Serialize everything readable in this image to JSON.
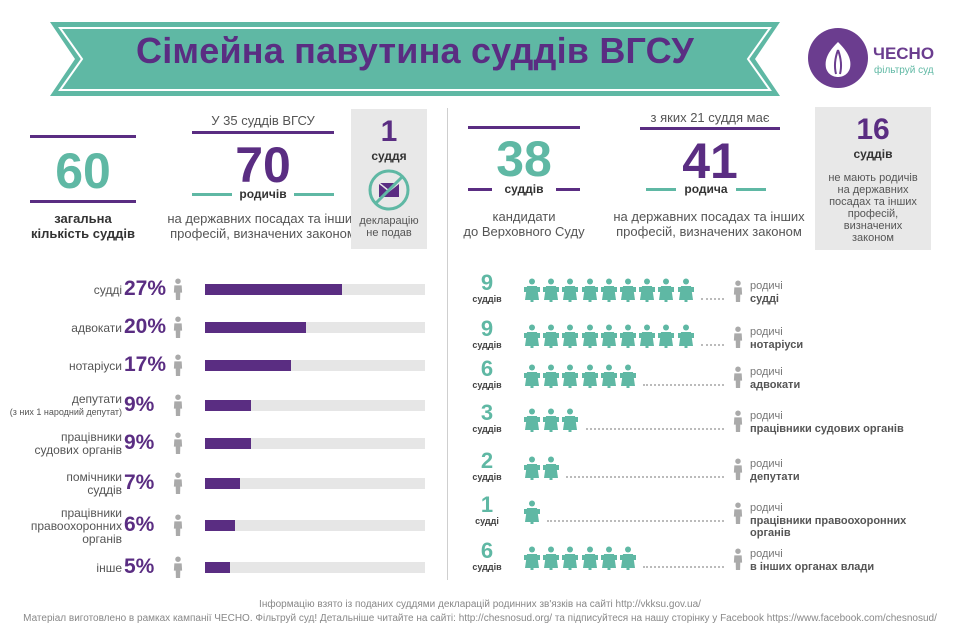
{
  "title": "Сімейна павутина суддів ВГСУ",
  "logo": {
    "name": "ЧЕСНО",
    "sub": "фільтруй суд"
  },
  "left_stats": {
    "total": {
      "value": "60",
      "label1": "загальна",
      "label2": "кількість суддів"
    },
    "header": "У 35 суддів ВГСУ",
    "relatives": {
      "value": "70",
      "unit": "родичів",
      "desc1": "на державних посадах та інших",
      "desc2": "професій, визначених законом"
    },
    "no_decl": {
      "value": "1",
      "unit": "суддя",
      "desc1": "декларацію",
      "desc2": "не подав"
    }
  },
  "right_stats": {
    "candidates": {
      "value": "38",
      "unit": "суддів",
      "desc1": "кандидати",
      "desc2": "до Верховного Суду"
    },
    "header": "з яких 21 суддя має",
    "relatives": {
      "value": "41",
      "unit": "родича",
      "desc1": "на державних посадах та інших",
      "desc2": "професій, визначених законом"
    },
    "no_rel": {
      "value": "16",
      "unit": "суддів",
      "d1": "не мають родичів",
      "d2": "на державних",
      "d3": "посадах та інших",
      "d4": "професій,",
      "d5": "визначених",
      "d6": "законом"
    }
  },
  "chart_data": [
    {
      "type": "bar",
      "categories": [
        "судді",
        "адвокати",
        "нотаріуси",
        "депутати",
        "працівники судових органів",
        "помічники суддів",
        "працівники правоохоронних органів",
        "інше"
      ],
      "values": [
        27,
        20,
        17,
        9,
        9,
        7,
        6,
        5
      ],
      "value_labels": [
        "27%",
        "20%",
        "17%",
        "9%",
        "9%",
        "7%",
        "6%",
        "5%"
      ],
      "notes": {
        "депутати": "(з них 1 народний депутат)"
      },
      "ylim": [
        0,
        100
      ]
    },
    {
      "type": "bar",
      "series_name": "",
      "unit_labels": [
        "суддів",
        "суддів",
        "суддів",
        "суддів",
        "суддів",
        "судді",
        "суддів"
      ],
      "categories": [
        "судді",
        "нотаріуси",
        "адвокати",
        "працівники судових органів",
        "депутати",
        "працівники правоохоронних органів",
        "в інших органах влади"
      ],
      "values": [
        9,
        9,
        6,
        3,
        2,
        1,
        6
      ],
      "category_prefix": "родичі"
    }
  ],
  "left_labels": [
    {
      "l1": "судді",
      "l2": ""
    },
    {
      "l1": "адвокати",
      "l2": ""
    },
    {
      "l1": "нотаріуси",
      "l2": ""
    },
    {
      "l1": "депутати",
      "l2": "(з них 1 народний депутат)"
    },
    {
      "l1": "працівники",
      "l2": "судових органів"
    },
    {
      "l1": "помічники",
      "l2": "суддів"
    },
    {
      "l1": "працівники",
      "l2": "правоохоронних",
      "l3": "органів"
    },
    {
      "l1": "інше",
      "l2": ""
    }
  ],
  "right_labels": [
    {
      "l1": "судді",
      "l2": ""
    },
    {
      "l1": "нотаріуси",
      "l2": ""
    },
    {
      "l1": "адвокати",
      "l2": ""
    },
    {
      "l1": "працівники судових органів",
      "l2": ""
    },
    {
      "l1": "депутати",
      "l2": ""
    },
    {
      "l1": "працівники правоохоронних",
      "l2": "органів"
    },
    {
      "l1": "в інших органах влади",
      "l2": ""
    }
  ],
  "footer": {
    "line1": "Інформацію взято із поданих суддями декларацій родинних зв'язків на сайті http://vkksu.gov.ua/",
    "line2": "Матеріал виготовлено в рамках кампанії ЧЕСНО. Фільтруй суд! Детальніше читайте на сайті: http://chesnosud.org/   та підписуйтеся на нашу сторінку у Facebook https://www.facebook.com/chesnosud/"
  },
  "colors": {
    "purple": "#5a2d82",
    "teal": "#5fb8a4",
    "gray": "#e6e6e6"
  }
}
